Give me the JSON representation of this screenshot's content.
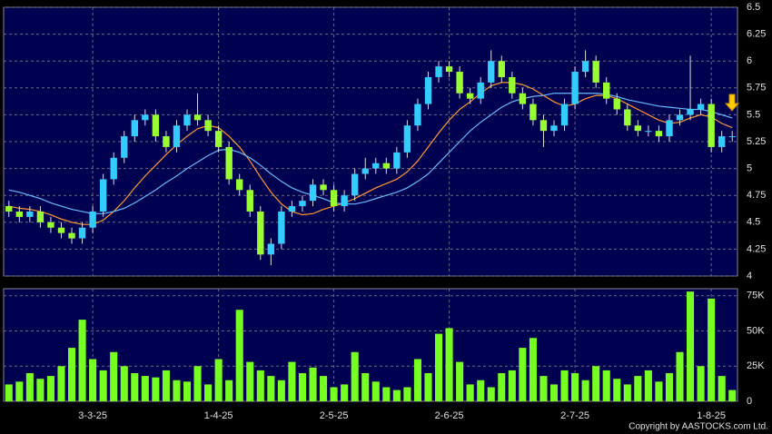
{
  "chart_data": {
    "type": "candlestick",
    "categories": [
      null,
      null,
      null,
      null,
      null,
      null,
      null,
      null,
      "3-3-25",
      null,
      null,
      null,
      null,
      null,
      null,
      null,
      null,
      null,
      null,
      null,
      "1-4-25",
      null,
      null,
      null,
      null,
      null,
      null,
      null,
      null,
      null,
      null,
      "2-5-25",
      null,
      null,
      null,
      null,
      null,
      null,
      null,
      null,
      null,
      null,
      "2-6-25",
      null,
      null,
      null,
      null,
      null,
      null,
      null,
      null,
      null,
      null,
      null,
      "2-7-25",
      null,
      null,
      null,
      null,
      null,
      null,
      null,
      null,
      null,
      null,
      null,
      null,
      "1-8-25",
      null,
      null
    ],
    "open": [
      4.65,
      4.6,
      4.55,
      4.6,
      4.5,
      4.45,
      4.4,
      4.35,
      4.45,
      4.6,
      4.9,
      5.1,
      5.3,
      5.45,
      5.5,
      5.3,
      5.2,
      5.4,
      5.5,
      5.45,
      5.35,
      5.2,
      4.9,
      4.8,
      4.6,
      4.2,
      4.3,
      4.6,
      4.65,
      4.7,
      4.85,
      4.8,
      4.65,
      4.75,
      4.95,
      5.0,
      5.05,
      5.0,
      5.15,
      5.4,
      5.6,
      5.85,
      5.95,
      5.9,
      5.7,
      5.65,
      5.8,
      6.0,
      5.85,
      5.7,
      5.6,
      5.45,
      5.35,
      5.4,
      5.6,
      5.9,
      6.0,
      5.8,
      5.65,
      5.55,
      5.4,
      5.35,
      5.35,
      5.3,
      5.45,
      5.5,
      5.55,
      5.6,
      5.2,
      5.3
    ],
    "high": [
      4.7,
      4.65,
      4.65,
      4.65,
      4.55,
      4.5,
      4.45,
      4.5,
      4.65,
      4.95,
      5.15,
      5.35,
      5.5,
      5.55,
      5.55,
      5.35,
      5.45,
      5.55,
      5.7,
      5.5,
      5.4,
      5.25,
      4.95,
      4.85,
      4.65,
      4.35,
      4.65,
      4.7,
      4.75,
      4.9,
      4.9,
      4.85,
      4.8,
      5.0,
      5.1,
      5.1,
      5.1,
      5.2,
      5.45,
      5.65,
      5.9,
      6.0,
      6.0,
      5.95,
      5.75,
      5.85,
      6.1,
      6.05,
      5.9,
      5.75,
      5.65,
      5.5,
      5.45,
      5.65,
      5.95,
      6.1,
      6.05,
      5.85,
      5.7,
      5.6,
      5.45,
      5.4,
      5.4,
      5.5,
      5.55,
      6.05,
      5.65,
      5.65,
      5.35,
      5.35
    ],
    "low": [
      4.55,
      4.5,
      4.5,
      4.45,
      4.4,
      4.35,
      4.3,
      4.3,
      4.4,
      4.55,
      4.85,
      5.05,
      5.25,
      5.4,
      5.25,
      5.15,
      5.15,
      5.35,
      5.4,
      5.3,
      5.15,
      4.85,
      4.75,
      4.55,
      4.15,
      4.1,
      4.25,
      4.55,
      4.6,
      4.65,
      4.75,
      4.6,
      4.6,
      4.7,
      4.9,
      4.95,
      4.95,
      4.95,
      5.1,
      5.35,
      5.55,
      5.8,
      5.85,
      5.65,
      5.6,
      5.6,
      5.75,
      5.8,
      5.65,
      5.55,
      5.4,
      5.2,
      5.3,
      5.35,
      5.55,
      5.85,
      5.75,
      5.6,
      5.5,
      5.35,
      5.3,
      5.3,
      5.25,
      5.25,
      5.4,
      5.45,
      5.5,
      5.15,
      5.15,
      5.25
    ],
    "close": [
      4.6,
      4.55,
      4.6,
      4.5,
      4.45,
      4.4,
      4.35,
      4.45,
      4.6,
      4.9,
      5.1,
      5.3,
      5.45,
      5.5,
      5.3,
      5.2,
      5.4,
      5.5,
      5.45,
      5.35,
      5.2,
      4.9,
      4.8,
      4.6,
      4.2,
      4.3,
      4.6,
      4.65,
      4.7,
      4.85,
      4.8,
      4.65,
      4.75,
      4.95,
      5.0,
      5.05,
      5.0,
      5.15,
      5.4,
      5.6,
      5.85,
      5.95,
      5.9,
      5.7,
      5.65,
      5.8,
      6.0,
      5.85,
      5.7,
      5.6,
      5.45,
      5.35,
      5.4,
      5.6,
      5.9,
      6.0,
      5.8,
      5.65,
      5.55,
      5.4,
      5.35,
      5.35,
      5.3,
      5.45,
      5.5,
      5.55,
      5.6,
      5.2,
      5.3,
      5.3
    ],
    "volume": [
      12000,
      14000,
      20000,
      16000,
      18000,
      25000,
      38000,
      58000,
      30000,
      22000,
      35000,
      25000,
      20000,
      18000,
      17000,
      22000,
      15000,
      14000,
      25000,
      12000,
      30000,
      15000,
      65000,
      28000,
      22000,
      18000,
      15000,
      28000,
      20000,
      24000,
      18000,
      10000,
      12000,
      35000,
      20000,
      14000,
      10000,
      8000,
      10000,
      30000,
      20000,
      48000,
      52000,
      28000,
      12000,
      15000,
      10000,
      20000,
      22000,
      38000,
      45000,
      18000,
      12000,
      22000,
      20000,
      15000,
      25000,
      22000,
      16000,
      12000,
      18000,
      22000,
      14000,
      20000,
      35000,
      78000,
      25000,
      73000,
      18000,
      8000
    ],
    "moving_averages": [
      {
        "color": "#ff9933",
        "values": [
          4.65,
          4.63,
          4.62,
          4.6,
          4.57,
          4.53,
          4.5,
          4.48,
          4.48,
          4.52,
          4.6,
          4.7,
          4.82,
          4.93,
          5.03,
          5.13,
          5.22,
          5.3,
          5.37,
          5.4,
          5.38,
          5.3,
          5.2,
          5.07,
          4.92,
          4.78,
          4.67,
          4.6,
          4.57,
          4.58,
          4.62,
          4.65,
          4.68,
          4.72,
          4.77,
          4.82,
          4.86,
          4.9,
          4.97,
          5.07,
          5.2,
          5.33,
          5.45,
          5.55,
          5.62,
          5.7,
          5.77,
          5.8,
          5.8,
          5.78,
          5.74,
          5.68,
          5.62,
          5.58,
          5.6,
          5.65,
          5.68,
          5.68,
          5.65,
          5.6,
          5.55,
          5.5,
          5.45,
          5.42,
          5.43,
          5.47,
          5.5,
          5.48,
          5.42,
          5.38
        ]
      },
      {
        "color": "#66bbff",
        "values": [
          4.8,
          4.78,
          4.75,
          4.72,
          4.68,
          4.65,
          4.62,
          4.6,
          4.58,
          4.58,
          4.6,
          4.63,
          4.68,
          4.74,
          4.8,
          4.87,
          4.93,
          5.0,
          5.06,
          5.12,
          5.17,
          5.18,
          5.15,
          5.1,
          5.03,
          4.95,
          4.88,
          4.82,
          4.78,
          4.75,
          4.72,
          4.68,
          4.67,
          4.67,
          4.69,
          4.72,
          4.75,
          4.78,
          4.82,
          4.88,
          4.95,
          5.05,
          5.15,
          5.25,
          5.35,
          5.43,
          5.5,
          5.57,
          5.62,
          5.65,
          5.67,
          5.68,
          5.7,
          5.7,
          5.7,
          5.7,
          5.7,
          5.69,
          5.67,
          5.64,
          5.62,
          5.6,
          5.58,
          5.57,
          5.56,
          5.55,
          5.55,
          5.53,
          5.5,
          5.47
        ]
      }
    ],
    "up_color": "#33ccff",
    "down_color": "#99ff33",
    "volume_color": "#77ff22",
    "ylim": [
      4,
      6.5
    ],
    "yticks": [
      4,
      4.25,
      4.5,
      4.75,
      5,
      5.25,
      5.5,
      5.75,
      6,
      6.25,
      6.5
    ],
    "volume_ylim": [
      0,
      80000
    ],
    "volume_yticks": [
      0,
      {
        "value": 25000,
        "label": "25K"
      },
      {
        "value": 50000,
        "label": "50K"
      },
      {
        "value": 75000,
        "label": "75K"
      }
    ],
    "grid": true,
    "copyright": "Copyright by AASTOCKS.com Ltd."
  }
}
